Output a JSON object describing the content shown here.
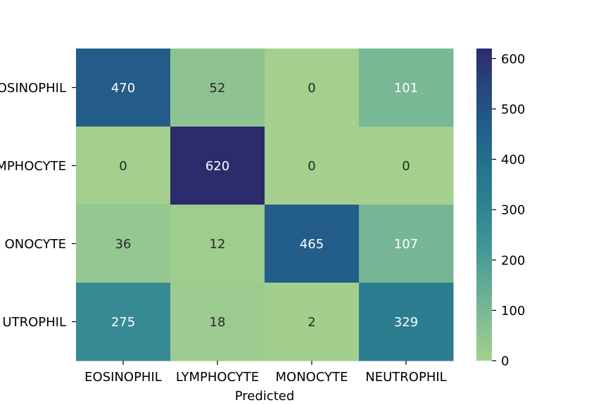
{
  "chart_data": {
    "type": "heatmap",
    "title": "",
    "xlabel": "Predicted",
    "ylabel": "",
    "x_categories": [
      "EOSINOPHIL",
      "LYMPHOCYTE",
      "MONOCYTE",
      "NEUTROPHIL"
    ],
    "y_categories": [
      "EOSINOPHIL",
      "LYMPHOCYTE",
      "MONOCYTE",
      "NEUTROPHIL"
    ],
    "y_tick_labels_visible": [
      "OSINOPHIL",
      "MPHOCYTE",
      "ONOCYTE",
      "UTROPHIL"
    ],
    "values": [
      [
        470,
        52,
        0,
        101
      ],
      [
        0,
        620,
        0,
        0
      ],
      [
        36,
        12,
        465,
        107
      ],
      [
        275,
        18,
        2,
        329
      ]
    ],
    "colorbar": {
      "range": [
        0,
        620
      ],
      "ticks": [
        0,
        100,
        200,
        300,
        400,
        500,
        600
      ],
      "colormap": "crest"
    },
    "colors": {
      "low": "#a4cf8e",
      "high": "#2c2c6c",
      "light_text": "#ffffff",
      "dark_text": "#262626"
    }
  }
}
